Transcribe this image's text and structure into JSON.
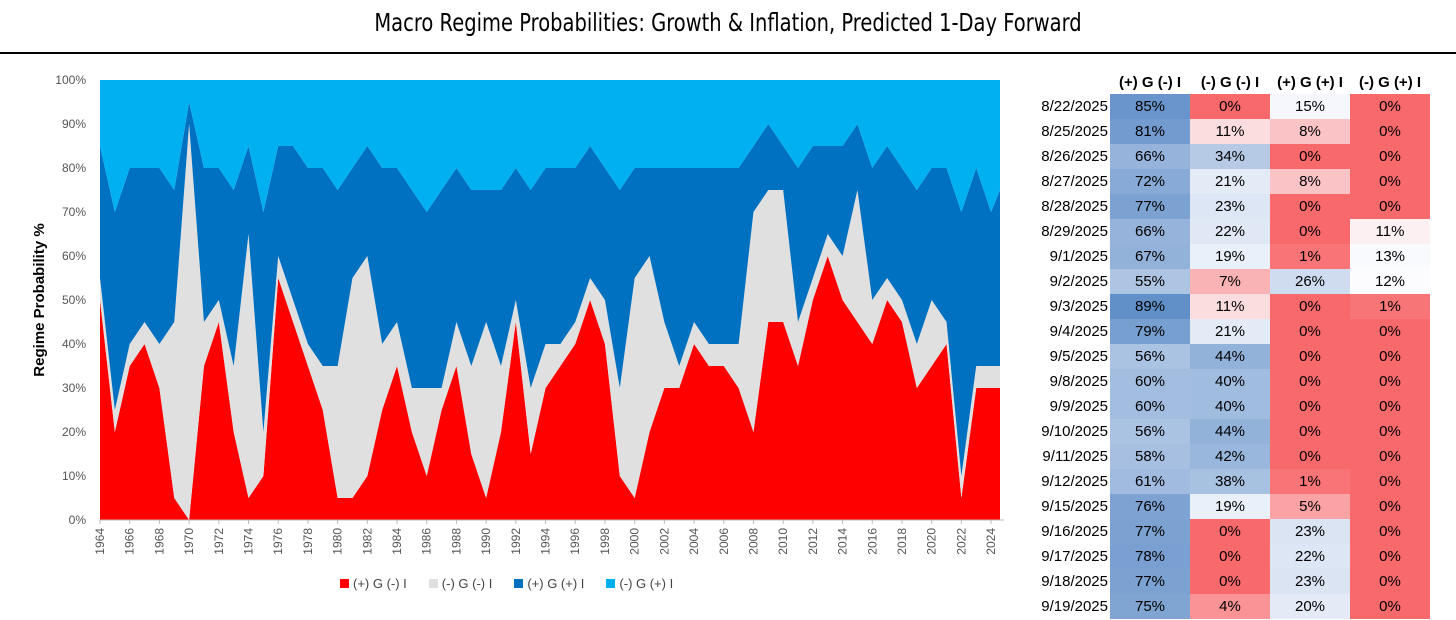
{
  "title": "Macro Regime Probabilities: Growth & Inflation, Predicted 1-Day Forward",
  "chart_data": {
    "type": "area",
    "stacked": true,
    "ylabel": "Regime Probability %",
    "xlabel": "",
    "ylim": [
      0,
      100
    ],
    "yticks": [
      "0%",
      "10%",
      "20%",
      "30%",
      "40%",
      "50%",
      "60%",
      "70%",
      "80%",
      "90%",
      "100%"
    ],
    "xticks": [
      "1964",
      "1966",
      "1968",
      "1970",
      "1972",
      "1974",
      "1976",
      "1978",
      "1980",
      "1982",
      "1984",
      "1986",
      "1988",
      "1990",
      "1992",
      "1994",
      "1996",
      "1998",
      "2000",
      "2002",
      "2004",
      "2006",
      "2008",
      "2010",
      "2012",
      "2014",
      "2016",
      "2018",
      "2020",
      "2022",
      "2024"
    ],
    "legend_position": "bottom",
    "x": [
      1964,
      1965,
      1966,
      1967,
      1968,
      1969,
      1970,
      1971,
      1972,
      1973,
      1974,
      1975,
      1976,
      1977,
      1978,
      1979,
      1980,
      1981,
      1982,
      1983,
      1984,
      1985,
      1986,
      1987,
      1988,
      1989,
      1990,
      1991,
      1992,
      1993,
      1994,
      1995,
      1996,
      1997,
      1998,
      1999,
      2000,
      2001,
      2002,
      2003,
      2004,
      2005,
      2006,
      2007,
      2008,
      2009,
      2010,
      2011,
      2012,
      2013,
      2014,
      2015,
      2016,
      2017,
      2018,
      2019,
      2020,
      2021,
      2022,
      2023,
      2024,
      2025
    ],
    "series": [
      {
        "name": "(+) G (-) I",
        "color": "#ff0000",
        "values": [
          50,
          20,
          35,
          40,
          30,
          5,
          0,
          35,
          45,
          20,
          5,
          10,
          55,
          45,
          35,
          25,
          5,
          5,
          10,
          25,
          35,
          20,
          10,
          25,
          35,
          15,
          5,
          20,
          45,
          15,
          30,
          35,
          40,
          50,
          40,
          10,
          5,
          20,
          30,
          30,
          40,
          35,
          35,
          30,
          20,
          45,
          45,
          35,
          50,
          60,
          50,
          45,
          40,
          50,
          45,
          30,
          35,
          40,
          5,
          30,
          30,
          30
        ]
      },
      {
        "name": "(-) G (-) I",
        "color": "#e0e0e0",
        "values": [
          5,
          5,
          5,
          5,
          10,
          40,
          90,
          10,
          5,
          15,
          60,
          10,
          5,
          5,
          5,
          10,
          30,
          50,
          50,
          15,
          10,
          10,
          20,
          5,
          10,
          20,
          40,
          15,
          5,
          15,
          10,
          5,
          5,
          5,
          10,
          20,
          50,
          40,
          15,
          5,
          5,
          5,
          5,
          10,
          50,
          30,
          30,
          10,
          5,
          5,
          10,
          30,
          10,
          5,
          5,
          10,
          15,
          5,
          5,
          5,
          5,
          5
        ]
      },
      {
        "name": "(+) G (+) I",
        "color": "#0070c0",
        "values": [
          30,
          45,
          40,
          35,
          40,
          30,
          5,
          35,
          30,
          40,
          20,
          50,
          25,
          35,
          40,
          45,
          40,
          25,
          25,
          40,
          35,
          45,
          40,
          45,
          35,
          40,
          30,
          40,
          30,
          45,
          40,
          40,
          35,
          30,
          30,
          45,
          25,
          20,
          35,
          45,
          35,
          40,
          40,
          40,
          15,
          15,
          10,
          35,
          30,
          20,
          25,
          15,
          30,
          30,
          30,
          35,
          30,
          35,
          60,
          45,
          35,
          40
        ]
      },
      {
        "name": "(-) G (+) I",
        "color": "#00b0f0",
        "values": [
          15,
          30,
          20,
          20,
          20,
          25,
          5,
          20,
          20,
          25,
          15,
          30,
          15,
          15,
          20,
          20,
          25,
          20,
          15,
          20,
          20,
          25,
          30,
          25,
          20,
          25,
          25,
          25,
          20,
          25,
          20,
          20,
          20,
          15,
          20,
          25,
          20,
          20,
          20,
          20,
          20,
          20,
          20,
          20,
          15,
          10,
          15,
          20,
          15,
          15,
          15,
          10,
          20,
          15,
          20,
          25,
          20,
          20,
          30,
          20,
          30,
          25
        ]
      }
    ]
  },
  "table": {
    "headers": [
      "(+) G (-) I",
      "(-) G (-) I",
      "(+) G (+) I",
      "(-) G (+) I"
    ],
    "rows": [
      {
        "date": "8/22/2025",
        "values": [
          85,
          0,
          15,
          0
        ]
      },
      {
        "date": "8/25/2025",
        "values": [
          81,
          11,
          8,
          0
        ]
      },
      {
        "date": "8/26/2025",
        "values": [
          66,
          34,
          0,
          0
        ]
      },
      {
        "date": "8/27/2025",
        "values": [
          72,
          21,
          8,
          0
        ]
      },
      {
        "date": "8/28/2025",
        "values": [
          77,
          23,
          0,
          0
        ]
      },
      {
        "date": "8/29/2025",
        "values": [
          66,
          22,
          0,
          11
        ]
      },
      {
        "date": "9/1/2025",
        "values": [
          67,
          19,
          1,
          13
        ]
      },
      {
        "date": "9/2/2025",
        "values": [
          55,
          7,
          26,
          12
        ]
      },
      {
        "date": "9/3/2025",
        "values": [
          89,
          11,
          0,
          1
        ]
      },
      {
        "date": "9/4/2025",
        "values": [
          79,
          21,
          0,
          0
        ]
      },
      {
        "date": "9/5/2025",
        "values": [
          56,
          44,
          0,
          0
        ]
      },
      {
        "date": "9/8/2025",
        "values": [
          60,
          40,
          0,
          0
        ]
      },
      {
        "date": "9/9/2025",
        "values": [
          60,
          40,
          0,
          0
        ]
      },
      {
        "date": "9/10/2025",
        "values": [
          56,
          44,
          0,
          0
        ]
      },
      {
        "date": "9/11/2025",
        "values": [
          58,
          42,
          0,
          0
        ]
      },
      {
        "date": "9/12/2025",
        "values": [
          61,
          38,
          1,
          0
        ]
      },
      {
        "date": "9/15/2025",
        "values": [
          76,
          19,
          5,
          0
        ]
      },
      {
        "date": "9/16/2025",
        "values": [
          77,
          0,
          23,
          0
        ]
      },
      {
        "date": "9/17/2025",
        "values": [
          78,
          0,
          22,
          0
        ]
      },
      {
        "date": "9/18/2025",
        "values": [
          77,
          0,
          23,
          0
        ]
      },
      {
        "date": "9/19/2025",
        "values": [
          75,
          4,
          20,
          0
        ]
      }
    ]
  },
  "colors": {
    "low": "#f8696b",
    "mid": "#fcfcff",
    "high": "#5a8ac6"
  }
}
